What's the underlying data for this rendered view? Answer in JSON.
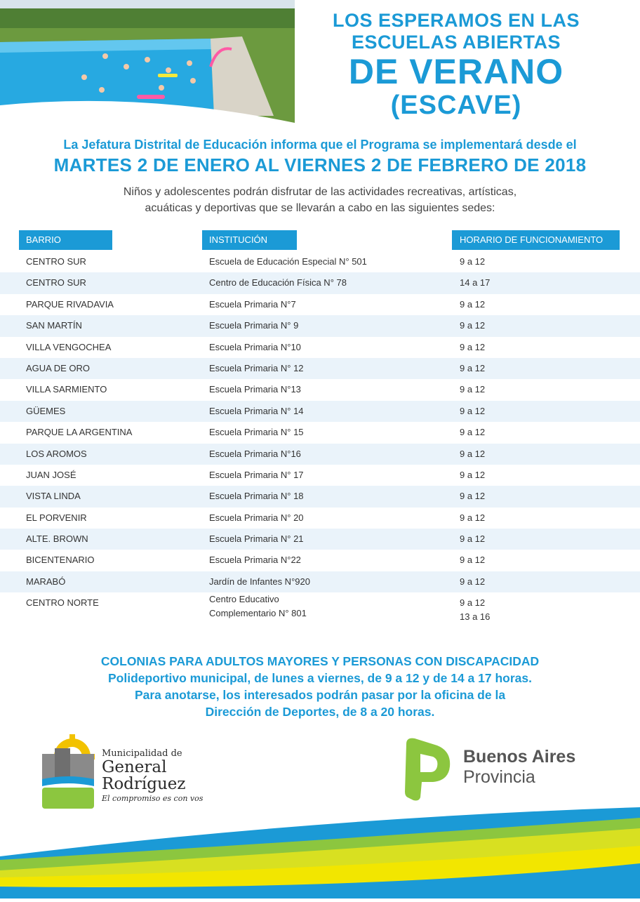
{
  "header": {
    "line1": "LOS ESPERAMOS EN LAS",
    "line2": "ESCUELAS ABIERTAS",
    "line3": "DE VERANO",
    "line4": "(ESCAVE)"
  },
  "intro": "La Jefatura Distrital de Educación informa que el Programa se implementará desde el",
  "dates": "MARTES 2 DE ENERO AL VIERNES 2 DE FEBRERO DE 2018",
  "description": {
    "line1": "Niños y adolescentes podrán disfrutar de las actividades recreativas, artísticas,",
    "line2": "acuáticas y deportivas que se llevarán a cabo en las siguientes sedes:"
  },
  "table": {
    "headers": [
      "BARRIO",
      "INSTITUCIÓN",
      "HORARIO DE FUNCIONAMIENTO"
    ],
    "rows": [
      [
        "CENTRO SUR",
        "Escuela de Educación Especial N° 501",
        "9 a 12"
      ],
      [
        "CENTRO SUR",
        "Centro de Educación Física N° 78",
        "14 a 17"
      ],
      [
        "PARQUE RIVADAVIA",
        "Escuela Primaria N°7",
        "9 a 12"
      ],
      [
        "SAN MARTÍN",
        "Escuela Primaria N° 9",
        "9 a 12"
      ],
      [
        "VILLA VENGOCHEA",
        "Escuela Primaria N°10",
        "9 a 12"
      ],
      [
        "AGUA DE ORO",
        "Escuela Primaria N° 12",
        "9 a 12"
      ],
      [
        "VILLA SARMIENTO",
        "Escuela Primaria N°13",
        "9 a 12"
      ],
      [
        "GÜEMES",
        "Escuela Primaria N° 14",
        "9 a 12"
      ],
      [
        "PARQUE LA ARGENTINA",
        "Escuela Primaria N° 15",
        "9 a 12"
      ],
      [
        "LOS AROMOS",
        "Escuela Primaria N°16",
        "9 a 12"
      ],
      [
        "JUAN JOSÉ",
        "Escuela Primaria N° 17",
        "9 a 12"
      ],
      [
        "VISTA LINDA",
        "Escuela Primaria N° 18",
        "9 a 12"
      ],
      [
        "EL PORVENIR",
        "Escuela Primaria N° 20",
        "9 a 12"
      ],
      [
        "ALTE. BROWN",
        "Escuela Primaria N° 21",
        "9 a 12"
      ],
      [
        "BICENTENARIO",
        "Escuela Primaria N°22",
        "9 a 12"
      ],
      [
        "MARABÓ",
        "Jardín de Infantes N°920",
        "9 a 12"
      ]
    ],
    "last_row": {
      "barrio": "CENTRO NORTE",
      "inst_line1": "Centro Educativo",
      "inst_line2": "Complementario N° 801",
      "horario1": "9 a 12",
      "horario2": "13 a 16"
    }
  },
  "colonias": {
    "line1": "COLONIAS PARA ADULTOS MAYORES Y PERSONAS CON DISCAPACIDAD",
    "line2": "Polideportivo municipal, de lunes a viernes, de 9 a 12 y de 14 a 17 horas.",
    "line3": "Para anotarse, los interesados podrán pasar por la oficina de la",
    "line4": "Dirección de Deportes, de 8 a 20 horas."
  },
  "logos": {
    "muni_line1": "Municipalidad de",
    "muni_line2": "General",
    "muni_line3": "Rodríguez",
    "muni_slogan": "El compromiso es con vos",
    "ba_line1": "Buenos Aires",
    "ba_line2": "Provincia"
  },
  "colors": {
    "accent": "#1b9ad6",
    "green": "#8cc63f",
    "yellow": "#f2d600"
  }
}
